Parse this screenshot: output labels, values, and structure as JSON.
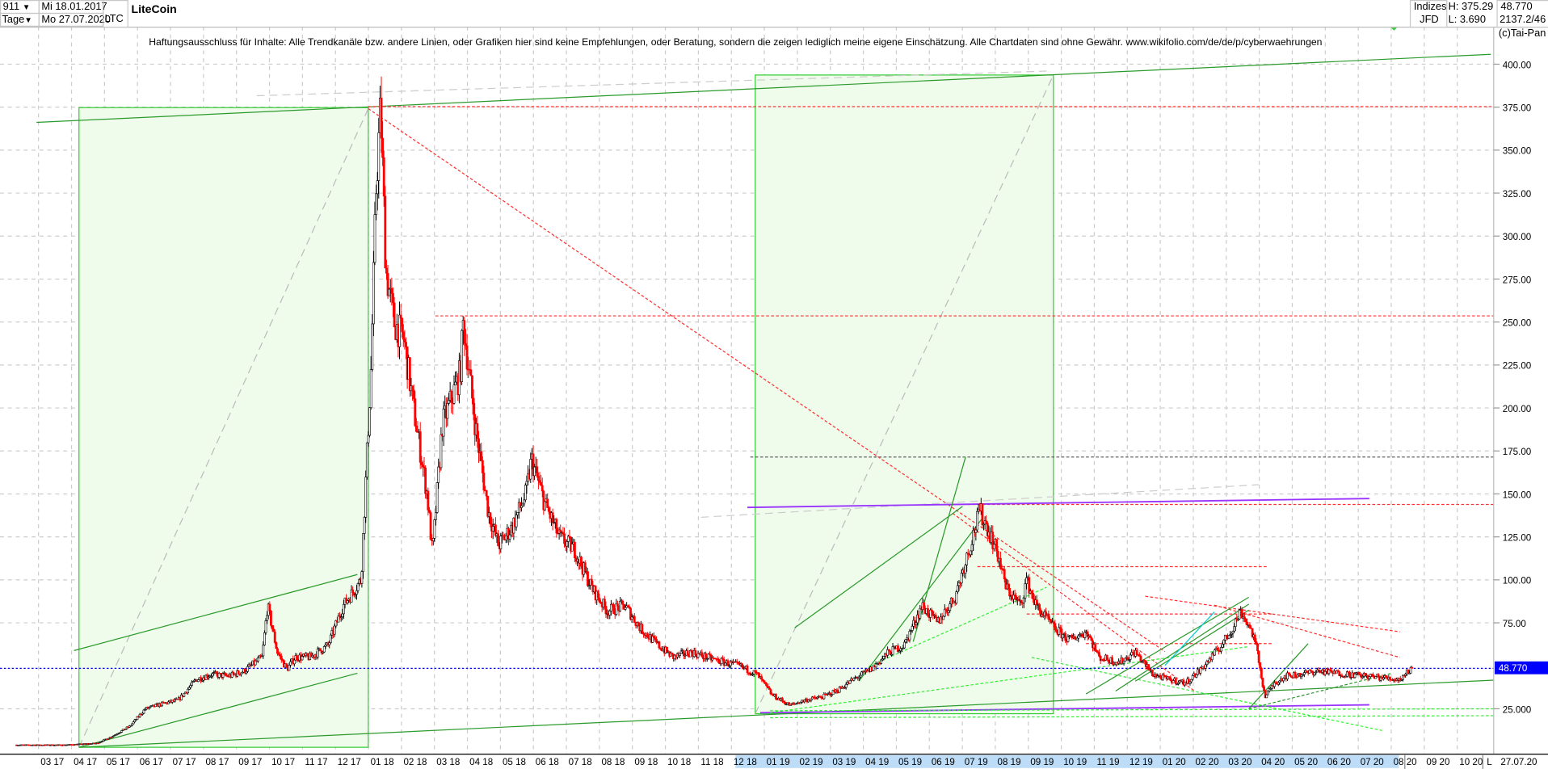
{
  "header": {
    "count": "911",
    "period": "Tage",
    "date_from": "Mi 18.01.2017",
    "date_to": "Mo 27.07.2020",
    "symbol": "LTC",
    "title": "LiteCoin",
    "market": "Indizes",
    "source": "JFD",
    "high": "H: 375.29",
    "low": "L: 3.690",
    "last": "48.770",
    "info": "2137.2/46",
    "copyright": "(c)Tai-Pan"
  },
  "disclaimer": "Haftungsausschluss für Inhalte: Alle Trendkanäle bzw. andere Linien, oder Grafiken hier sind keine Empfehlungen, oder Beratung, sondern die zeigen lediglich meine eigene Einschätzung. Alle Chartdaten sind ohne Gewähr.  www.wikifolio.com/de/de/p/cyberwaehrungen",
  "footer": {
    "scale_mode": "L",
    "end_date": "27.07.20"
  },
  "colors": {
    "up": "#000000",
    "down": "#ff0000",
    "last_price": "#0000ff",
    "zone_fill": "#effcec",
    "zone_stroke": "#33cc33"
  },
  "chart_data": {
    "type": "candlestick",
    "title": "LiteCoin",
    "ylim": [
      0,
      410
    ],
    "yticks": [
      "25.000",
      "75.00",
      "100.00",
      "125.00",
      "150.00",
      "175.00",
      "200.00",
      "225.00",
      "250.00",
      "275.00",
      "300.00",
      "325.00",
      "350.00",
      "375.00",
      "400.00"
    ],
    "xticks": [
      "03 17",
      "04 17",
      "05 17",
      "06 17",
      "07 17",
      "08 17",
      "09 17",
      "10 17",
      "11 17",
      "12 17",
      "01 18",
      "02 18",
      "03 18",
      "04 18",
      "05 18",
      "06 18",
      "07 18",
      "08 18",
      "09 18",
      "10 18",
      "11 18",
      "12 18",
      "01 19",
      "02 19",
      "03 19",
      "04 19",
      "05 19",
      "06 19",
      "07 19",
      "08 19",
      "09 19",
      "10 19",
      "11 19",
      "12 19",
      "01 20",
      "02 20",
      "03 20",
      "04 20",
      "05 20",
      "06 20",
      "07 20",
      "08 20",
      "09 20",
      "10 20"
    ],
    "last_price_label": "48.770",
    "grid": true,
    "series": [
      [
        "2017-01-18",
        4
      ],
      [
        "2017-02-01",
        4
      ],
      [
        "2017-03-01",
        4
      ],
      [
        "2017-04-01",
        5
      ],
      [
        "2017-04-15",
        9
      ],
      [
        "2017-05-01",
        15
      ],
      [
        "2017-05-15",
        25
      ],
      [
        "2017-06-01",
        28
      ],
      [
        "2017-06-15",
        30
      ],
      [
        "2017-07-01",
        42
      ],
      [
        "2017-07-15",
        45
      ],
      [
        "2017-08-01",
        44
      ],
      [
        "2017-08-15",
        47
      ],
      [
        "2017-09-01",
        55
      ],
      [
        "2017-09-06",
        85
      ],
      [
        "2017-09-15",
        58
      ],
      [
        "2017-09-24",
        48
      ],
      [
        "2017-10-01",
        55
      ],
      [
        "2017-10-15",
        55
      ],
      [
        "2017-11-01",
        62
      ],
      [
        "2017-11-15",
        85
      ],
      [
        "2017-12-01",
        100
      ],
      [
        "2017-12-10",
        220
      ],
      [
        "2017-12-15",
        330
      ],
      [
        "2017-12-19",
        375
      ],
      [
        "2017-12-24",
        280
      ],
      [
        "2018-01-01",
        250
      ],
      [
        "2018-01-10",
        240
      ],
      [
        "2018-01-19",
        200
      ],
      [
        "2018-02-01",
        150
      ],
      [
        "2018-02-06",
        115
      ],
      [
        "2018-02-15",
        190
      ],
      [
        "2018-03-01",
        220
      ],
      [
        "2018-03-04",
        250
      ],
      [
        "2018-03-15",
        190
      ],
      [
        "2018-03-27",
        140
      ],
      [
        "2018-04-06",
        120
      ],
      [
        "2018-04-18",
        130
      ],
      [
        "2018-05-01",
        150
      ],
      [
        "2018-05-06",
        170
      ],
      [
        "2018-05-18",
        145
      ],
      [
        "2018-06-01",
        125
      ],
      [
        "2018-06-15",
        118
      ],
      [
        "2018-07-01",
        95
      ],
      [
        "2018-07-15",
        82
      ],
      [
        "2018-08-01",
        85
      ],
      [
        "2018-08-15",
        72
      ],
      [
        "2018-09-01",
        62
      ],
      [
        "2018-09-15",
        55
      ],
      [
        "2018-10-01",
        58
      ],
      [
        "2018-10-15",
        55
      ],
      [
        "2018-11-01",
        52
      ],
      [
        "2018-11-15",
        50
      ],
      [
        "2018-12-01",
        45
      ],
      [
        "2018-12-15",
        33
      ],
      [
        "2019-01-01",
        27
      ],
      [
        "2019-01-15",
        30
      ],
      [
        "2019-02-01",
        32
      ],
      [
        "2019-02-15",
        36
      ],
      [
        "2019-03-01",
        43
      ],
      [
        "2019-03-15",
        48
      ],
      [
        "2019-04-01",
        58
      ],
      [
        "2019-04-15",
        62
      ],
      [
        "2019-05-01",
        85
      ],
      [
        "2019-05-15",
        75
      ],
      [
        "2019-06-01",
        90
      ],
      [
        "2019-06-15",
        120
      ],
      [
        "2019-06-24",
        140
      ],
      [
        "2019-07-01",
        130
      ],
      [
        "2019-07-10",
        115
      ],
      [
        "2019-07-18",
        95
      ],
      [
        "2019-08-01",
        85
      ],
      [
        "2019-08-06",
        100
      ],
      [
        "2019-08-15",
        85
      ],
      [
        "2019-09-01",
        72
      ],
      [
        "2019-09-15",
        65
      ],
      [
        "2019-10-01",
        70
      ],
      [
        "2019-10-12",
        55
      ],
      [
        "2019-11-01",
        52
      ],
      [
        "2019-11-15",
        58
      ],
      [
        "2019-12-01",
        45
      ],
      [
        "2019-12-15",
        42
      ],
      [
        "2020-01-01",
        40
      ],
      [
        "2020-01-15",
        48
      ],
      [
        "2020-02-01",
        60
      ],
      [
        "2020-02-12",
        70
      ],
      [
        "2020-02-21",
        82
      ],
      [
        "2020-03-01",
        70
      ],
      [
        "2020-03-06",
        58
      ],
      [
        "2020-03-13",
        32
      ],
      [
        "2020-03-22",
        40
      ],
      [
        "2020-04-01",
        44
      ],
      [
        "2020-04-15",
        45
      ],
      [
        "2020-05-01",
        47
      ],
      [
        "2020-05-15",
        46
      ],
      [
        "2020-06-01",
        45
      ],
      [
        "2020-06-15",
        44
      ],
      [
        "2020-07-01",
        43
      ],
      [
        "2020-07-15",
        42
      ],
      [
        "2020-07-27",
        48.77
      ]
    ]
  }
}
